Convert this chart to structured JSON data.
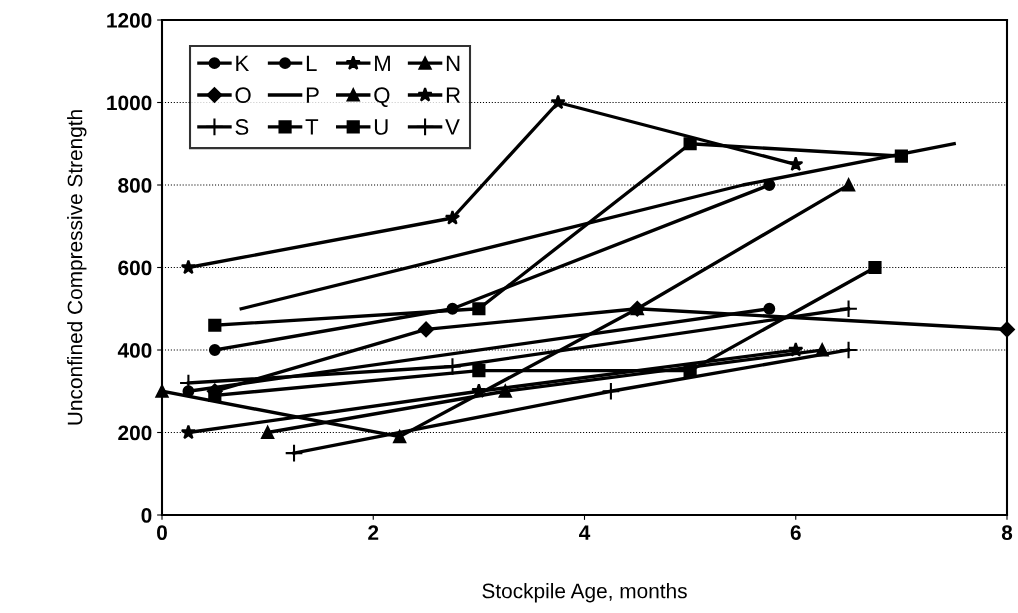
{
  "chart_data": {
    "type": "line",
    "xlabel": "Stockpile Age, months",
    "ylabel": "Unconfined Compressive Strength",
    "xlim": [
      0,
      8
    ],
    "xticks": [
      0,
      2,
      4,
      6,
      8
    ],
    "ylim": [
      0,
      1200
    ],
    "yticks": [
      0,
      200,
      400,
      600,
      800,
      1000,
      1200
    ],
    "grid": "y",
    "legend": "top left",
    "line_style": "solid",
    "series": [
      {
        "name": "K",
        "color": "#000000",
        "marker": "circle",
        "x": [
          0.25,
          5.75
        ],
        "values": [
          300,
          500
        ]
      },
      {
        "name": "L",
        "color": "#000000",
        "marker": "circle",
        "x": [
          0.5,
          2.75,
          5.75
        ],
        "values": [
          400,
          500,
          800
        ]
      },
      {
        "name": "M",
        "color": "#000000",
        "marker": "star",
        "x": [
          0.25,
          3,
          6
        ],
        "values": [
          200,
          300,
          400
        ]
      },
      {
        "name": "N",
        "color": "#000000",
        "marker": "triangle",
        "x": [
          0,
          2.25,
          4.5,
          6.5
        ],
        "values": [
          300,
          190,
          500,
          800
        ]
      },
      {
        "name": "O",
        "color": "#000000",
        "marker": "diamond",
        "x": [
          0.5,
          2.5,
          4.5,
          8
        ],
        "values": [
          300,
          450,
          500,
          450
        ]
      },
      {
        "name": "P",
        "color": "#000000",
        "marker": "none",
        "x": [
          0.75,
          5.5,
          7.5
        ],
        "values": [
          500,
          800,
          900
        ]
      },
      {
        "name": "Q",
        "color": "#000000",
        "marker": "triangle",
        "x": [
          1,
          3.25,
          6.25
        ],
        "values": [
          200,
          300,
          400
        ]
      },
      {
        "name": "R",
        "color": "#000000",
        "marker": "star",
        "x": [
          0.25,
          2.75,
          3.75,
          6
        ],
        "values": [
          600,
          720,
          1000,
          850
        ]
      },
      {
        "name": "S",
        "color": "#000000",
        "marker": "cross",
        "x": [
          0.25,
          2.75,
          6.5
        ],
        "values": [
          320,
          360,
          500
        ]
      },
      {
        "name": "T",
        "color": "#000000",
        "marker": "square",
        "x": [
          0.5,
          3,
          5,
          7
        ],
        "values": [
          460,
          500,
          900,
          870
        ]
      },
      {
        "name": "U",
        "color": "#000000",
        "marker": "square",
        "x": [
          0.5,
          3,
          5,
          6.75
        ],
        "values": [
          290,
          350,
          350,
          600
        ]
      },
      {
        "name": "V",
        "color": "#000000",
        "marker": "cross",
        "x": [
          1.25,
          4.25,
          6.5
        ],
        "values": [
          150,
          300,
          400
        ]
      }
    ]
  }
}
